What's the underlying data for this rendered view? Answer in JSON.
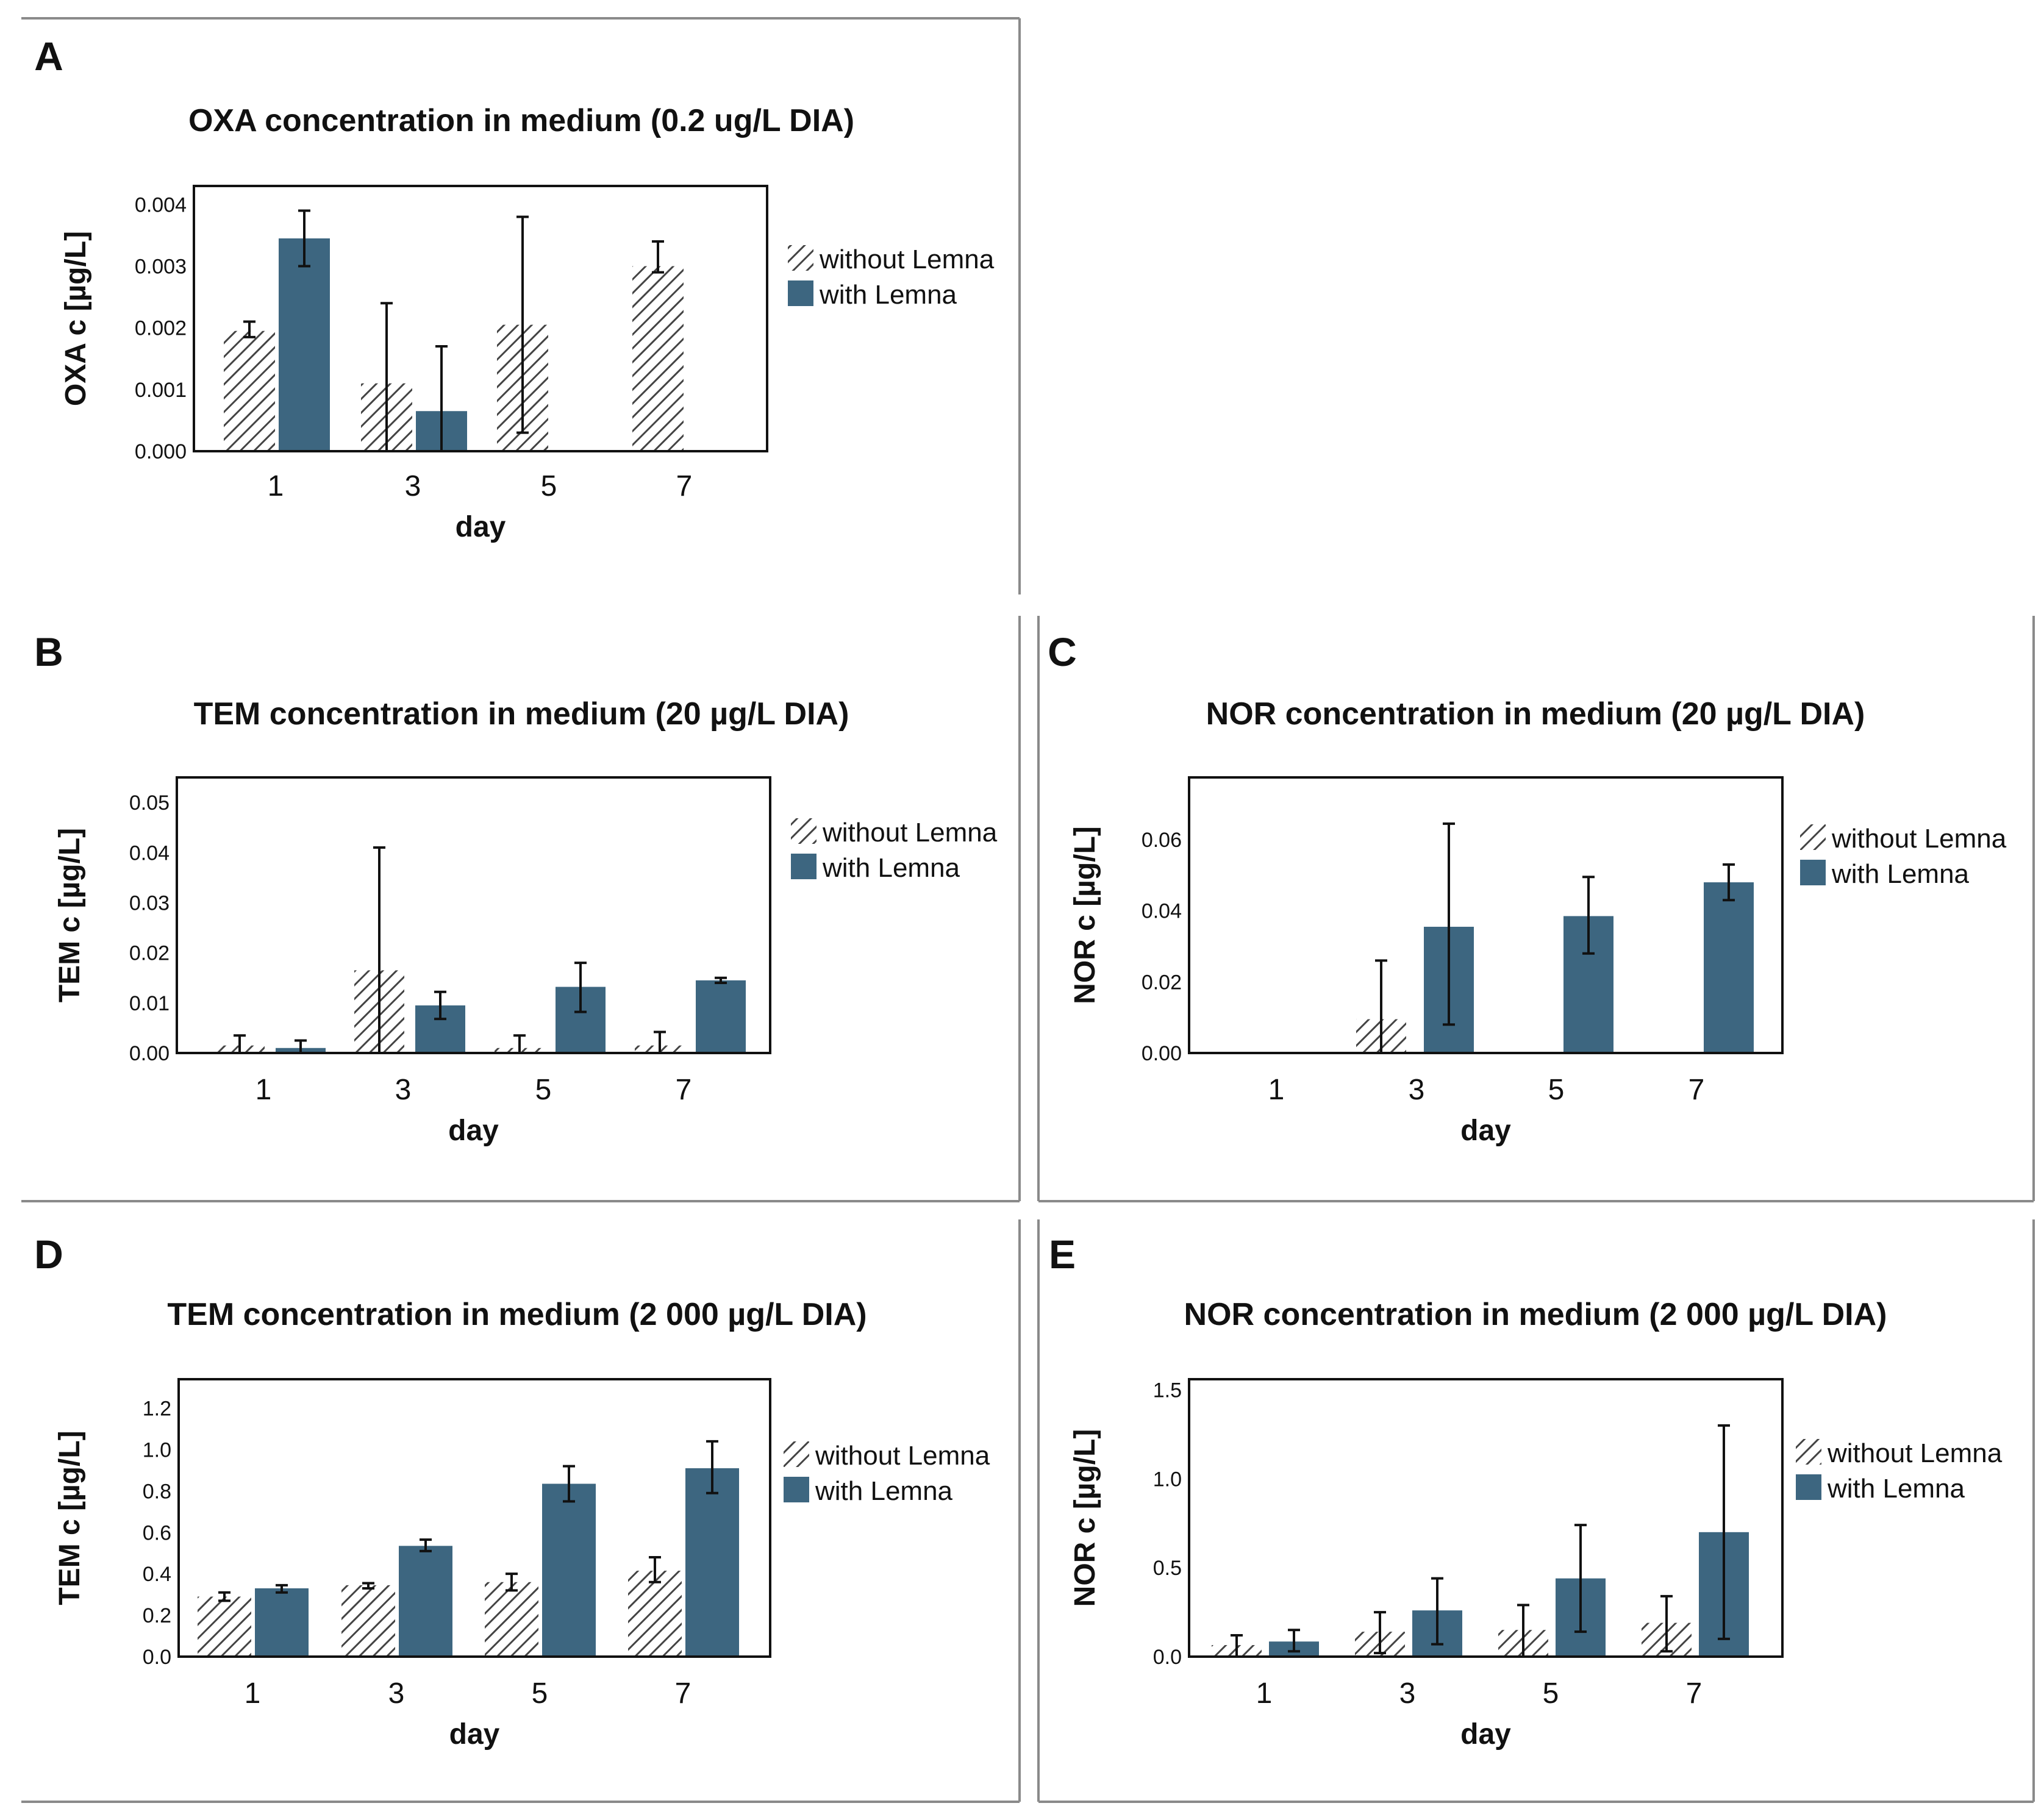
{
  "colors": {
    "with_lemna": "#3d6680",
    "hatch_stroke": "#444444",
    "hatch_bg": "#ffffff",
    "frame": "#111111",
    "panel_border": "#8a8a8a"
  },
  "legend": {
    "without_label": "without Lemna",
    "with_label": "with Lemna"
  },
  "chart_data": [
    {
      "panel": "A",
      "type": "bar",
      "title": "OXA concentration in medium (0.2 ug/L DIA)",
      "xlabel": "day",
      "ylabel": "OXA c [µg/L]",
      "categories": [
        "1",
        "3",
        "5",
        "7"
      ],
      "ylim": [
        0,
        0.0043
      ],
      "yticks": [
        0,
        0.001,
        0.002,
        0.003,
        0.004
      ],
      "ytick_labels": [
        "0.000",
        "0.001",
        "0.002",
        "0.003",
        "0.004"
      ],
      "series": [
        {
          "name": "without Lemna",
          "values": [
            0.00195,
            0.0011,
            0.00205,
            0.003
          ],
          "err_low": [
            0.00185,
            0.0,
            0.0003,
            0.0029
          ],
          "err_high": [
            0.0021,
            0.0024,
            0.0038,
            0.0034
          ]
        },
        {
          "name": "with Lemna",
          "values": [
            0.00345,
            0.00065,
            0.0,
            0.0
          ],
          "err_low": [
            0.003,
            0.0,
            0.0,
            0.0
          ],
          "err_high": [
            0.0039,
            0.0017,
            0.0,
            0.0
          ]
        }
      ]
    },
    {
      "panel": "B",
      "type": "bar",
      "title": "TEM concentration in medium (20 µg/L DIA)",
      "xlabel": "day",
      "ylabel": "TEM c [µg/L]",
      "categories": [
        "1",
        "3",
        "5",
        "7"
      ],
      "ylim": [
        0,
        0.055
      ],
      "yticks": [
        0,
        0.01,
        0.02,
        0.03,
        0.04,
        0.05
      ],
      "ytick_labels": [
        "0.00",
        "0.01",
        "0.02",
        "0.03",
        "0.04",
        "0.05"
      ],
      "series": [
        {
          "name": "without Lemna",
          "values": [
            0.0015,
            0.0165,
            0.001,
            0.0015
          ],
          "err_low": [
            0.0,
            0.0,
            0.0,
            0.0
          ],
          "err_high": [
            0.0035,
            0.041,
            0.0035,
            0.0042
          ]
        },
        {
          "name": "with Lemna",
          "values": [
            0.001,
            0.0095,
            0.0132,
            0.0145
          ],
          "err_low": [
            0.0,
            0.0068,
            0.0082,
            0.014
          ],
          "err_high": [
            0.0025,
            0.0122,
            0.018,
            0.015
          ]
        }
      ]
    },
    {
      "panel": "C",
      "type": "bar",
      "title": "NOR concentration in medium (20 µg/L DIA)",
      "xlabel": "day",
      "ylabel": "NOR c [µg/L]",
      "categories": [
        "1",
        "3",
        "5",
        "7"
      ],
      "ylim": [
        0,
        0.0775
      ],
      "yticks": [
        0,
        0.02,
        0.04,
        0.06
      ],
      "ytick_labels": [
        "0.00",
        "0.02",
        "0.04",
        "0.06"
      ],
      "series": [
        {
          "name": "without Lemna",
          "values": [
            0.0,
            0.0095,
            0.0,
            0.0
          ],
          "err_low": [
            0.0,
            0.0,
            0.0,
            0.0
          ],
          "err_high": [
            0.0,
            0.026,
            0.0,
            0.0
          ]
        },
        {
          "name": "with Lemna",
          "values": [
            0.0,
            0.0355,
            0.0385,
            0.048
          ],
          "err_low": [
            0.0,
            0.008,
            0.028,
            0.043
          ],
          "err_high": [
            0.0,
            0.0645,
            0.0495,
            0.053
          ]
        }
      ]
    },
    {
      "panel": "D",
      "type": "bar",
      "title": "TEM concentration in medium (2 000 µg/L DIA)",
      "xlabel": "day",
      "ylabel": "TEM c [µg/L]",
      "categories": [
        "1",
        "3",
        "5",
        "7"
      ],
      "ylim": [
        0,
        1.34
      ],
      "yticks": [
        0,
        0.2,
        0.4,
        0.6,
        0.8,
        1.0,
        1.2
      ],
      "ytick_labels": [
        "0.0",
        "0.2",
        "0.4",
        "0.6",
        "0.8",
        "1.0",
        "1.2"
      ],
      "series": [
        {
          "name": "without Lemna",
          "values": [
            0.29,
            0.345,
            0.36,
            0.415
          ],
          "err_low": [
            0.27,
            0.33,
            0.32,
            0.36
          ],
          "err_high": [
            0.31,
            0.355,
            0.4,
            0.48
          ]
        },
        {
          "name": "with Lemna",
          "values": [
            0.33,
            0.535,
            0.835,
            0.91
          ],
          "err_low": [
            0.31,
            0.51,
            0.75,
            0.79
          ],
          "err_high": [
            0.345,
            0.565,
            0.92,
            1.04
          ]
        }
      ]
    },
    {
      "panel": "E",
      "type": "bar",
      "title": "NOR concentration in medium (2 000 µg/L DIA)",
      "xlabel": "day",
      "ylabel": "NOR c [µg/L]",
      "categories": [
        "1",
        "3",
        "5",
        "7"
      ],
      "ylim": [
        0,
        1.56
      ],
      "yticks": [
        0,
        0.5,
        1.0,
        1.5
      ],
      "ytick_labels": [
        "0.0",
        "0.5",
        "1.0",
        "1.5"
      ],
      "series": [
        {
          "name": "without Lemna",
          "values": [
            0.065,
            0.14,
            0.15,
            0.19
          ],
          "err_low": [
            0.0,
            0.02,
            0.0,
            0.03
          ],
          "err_high": [
            0.12,
            0.25,
            0.29,
            0.34
          ]
        },
        {
          "name": "with Lemna",
          "values": [
            0.085,
            0.26,
            0.44,
            0.7
          ],
          "err_low": [
            0.03,
            0.07,
            0.14,
            0.1
          ],
          "err_high": [
            0.15,
            0.44,
            0.74,
            1.3
          ]
        }
      ]
    }
  ]
}
